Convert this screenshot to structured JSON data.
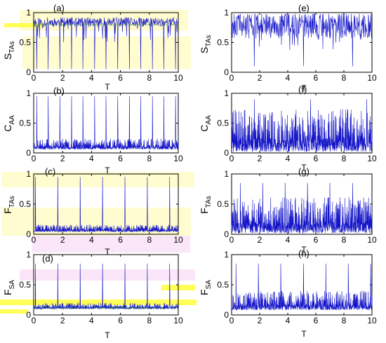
{
  "chart_data": [
    {
      "id": "a",
      "type": "line",
      "panel_label": "(a)",
      "ylabel_main": "S",
      "ylabel_sub": "TAs",
      "xlabel": "T",
      "xlim": [
        0,
        10
      ],
      "ylim": [
        0,
        1
      ],
      "xticks": [
        0,
        2,
        4,
        6,
        8,
        10
      ],
      "yticks": [
        0,
        0.5,
        1
      ],
      "ytick_labels": [
        "0",
        "0.5",
        "1"
      ],
      "signal": {
        "base": 0.84,
        "noise": 0.08,
        "spike_dir": "down",
        "spike_to": 0.05,
        "spike_every": 0.8,
        "spike_start": 0.2,
        "min_y": 0.5,
        "seed": 11
      },
      "overlay_green": {
        "base": 0.8,
        "noise": 0.02
      },
      "series": [
        {
          "values_summary": "mean 0.84, dips to ~0.05 roughly every 0.8 time units"
        }
      ]
    },
    {
      "id": "b",
      "type": "line",
      "panel_label": "(b)",
      "ylabel_main": "C",
      "ylabel_sub": "AA",
      "xlabel": "T",
      "xlim": [
        0,
        10
      ],
      "ylim": [
        0,
        1
      ],
      "xticks": [
        0,
        2,
        4,
        6,
        8,
        10
      ],
      "yticks": [
        0,
        0.5,
        1
      ],
      "ytick_labels": [
        "0",
        "0.5",
        "1"
      ],
      "signal": {
        "base": 0.06,
        "noise": 0.18,
        "spike_dir": "up",
        "spike_to": 0.95,
        "spike_every": 0.8,
        "spike_start": 0.2,
        "seed": 23
      },
      "series": [
        {
          "values_summary": "mostly 0–0.3, spikes to ~0.95 every ~0.8"
        }
      ]
    },
    {
      "id": "c",
      "type": "line",
      "panel_label": "(c)",
      "ylabel_main": "F",
      "ylabel_sub": "TAs",
      "xlabel": "T",
      "xlim": [
        0,
        10
      ],
      "ylim": [
        0,
        1
      ],
      "xticks": [
        0,
        2,
        4,
        6,
        8,
        10
      ],
      "yticks": [
        0,
        0.5,
        1
      ],
      "ytick_labels": [
        "0",
        "0.5",
        "1"
      ],
      "signal": {
        "base": 0.04,
        "noise": 0.12,
        "spike_dir": "up",
        "spike_to": 0.95,
        "spike_every": 1.55,
        "spike_start": 0.1,
        "seed": 37
      },
      "series": [
        {
          "values_summary": "mostly 0–0.15, spikes to ~0.95 every ~1.55"
        }
      ]
    },
    {
      "id": "d",
      "type": "line",
      "panel_label": "(d)",
      "ylabel_main": "F",
      "ylabel_sub": "SA",
      "xlabel": "T",
      "xlim": [
        0,
        10
      ],
      "ylim": [
        0,
        1
      ],
      "xticks": [
        0,
        2,
        4,
        6,
        8,
        10
      ],
      "yticks": [
        0,
        0.5,
        1
      ],
      "ytick_labels": [
        "0",
        "0.5",
        "1"
      ],
      "signal": {
        "base": 0.1,
        "noise": 0.1,
        "spike_dir": "up",
        "spike_to": 0.85,
        "spike_every": 1.55,
        "spike_start": 0.1,
        "seed": 53
      },
      "overlay_green": {
        "base": 0.12,
        "noise": 0.03
      },
      "series": [
        {
          "values_summary": "mostly 0.05–0.2, spikes to ~0.85 every ~1.55"
        }
      ]
    },
    {
      "id": "e",
      "type": "line",
      "panel_label": "(e)",
      "ylabel_main": "S",
      "ylabel_sub": "TAs",
      "xlabel": "T",
      "xlim": [
        0,
        10
      ],
      "ylim": [
        0,
        1
      ],
      "xticks": [
        0,
        2,
        4,
        6,
        8,
        10
      ],
      "yticks": [
        0,
        0.5,
        1
      ],
      "ytick_labels": [
        "0",
        "0.5",
        "1"
      ],
      "signal": {
        "base": 0.78,
        "noise": 0.22,
        "spike_dir": "down",
        "spike_to": 0.1,
        "spike_every": 3.5,
        "spike_start": 1.6,
        "min_y": 0.35,
        "seed": 61
      },
      "series": [
        {
          "values_summary": "noisy 0.5–0.95, occasional dips"
        }
      ]
    },
    {
      "id": "f",
      "type": "line",
      "panel_label": "(f)",
      "ylabel_main": "C",
      "ylabel_sub": "AA",
      "xlabel": "T",
      "xlim": [
        0,
        10
      ],
      "ylim": [
        0,
        1
      ],
      "xticks": [
        0,
        2,
        4,
        6,
        8,
        10
      ],
      "yticks": [
        0,
        0.5,
        1
      ],
      "ytick_labels": [
        "0",
        "0.5",
        "1"
      ],
      "signal": {
        "base": 0.02,
        "noise": 0.72,
        "spike_dir": "up",
        "spike_to": 0.9,
        "spike_every": 4.0,
        "spike_start": 1.6,
        "seed": 71
      },
      "series": [
        {
          "values_summary": "dense noise 0–0.8"
        }
      ]
    },
    {
      "id": "g",
      "type": "line",
      "panel_label": "(g)",
      "ylabel_main": "F",
      "ylabel_sub": "TAs",
      "xlabel": "T",
      "xlim": [
        0,
        10
      ],
      "ylim": [
        0,
        1
      ],
      "xticks": [
        0,
        2,
        4,
        6,
        8,
        10
      ],
      "yticks": [
        0,
        0.5,
        1
      ],
      "ytick_labels": [
        "0",
        "0.5",
        "1"
      ],
      "signal": {
        "base": 0.02,
        "noise": 0.6,
        "spike_dir": "up",
        "spike_to": 0.85,
        "spike_every": 1.6,
        "spike_start": 0.6,
        "seed": 83
      },
      "series": [
        {
          "values_summary": "dense noise 0–0.6, spikes to ~0.85"
        }
      ]
    },
    {
      "id": "h",
      "type": "line",
      "panel_label": "(h)",
      "ylabel_main": "F",
      "ylabel_sub": "SA",
      "xlabel": "T",
      "xlim": [
        0,
        10
      ],
      "ylim": [
        0,
        1
      ],
      "xticks": [
        0,
        2,
        4,
        6,
        8,
        10
      ],
      "yticks": [
        0,
        0.5,
        1
      ],
      "ytick_labels": [
        "0",
        "0.5",
        "1"
      ],
      "signal": {
        "base": 0.08,
        "noise": 0.32,
        "spike_dir": "up",
        "spike_to": 0.85,
        "spike_every": 1.6,
        "spike_start": 0.3,
        "seed": 97
      },
      "series": [
        {
          "values_summary": "noise 0.05–0.45, spikes to ~0.85"
        }
      ]
    }
  ],
  "colors": {
    "trace": "#1515c8",
    "overlay": "#2f8f2f",
    "highlight": "#ffff3a"
  }
}
